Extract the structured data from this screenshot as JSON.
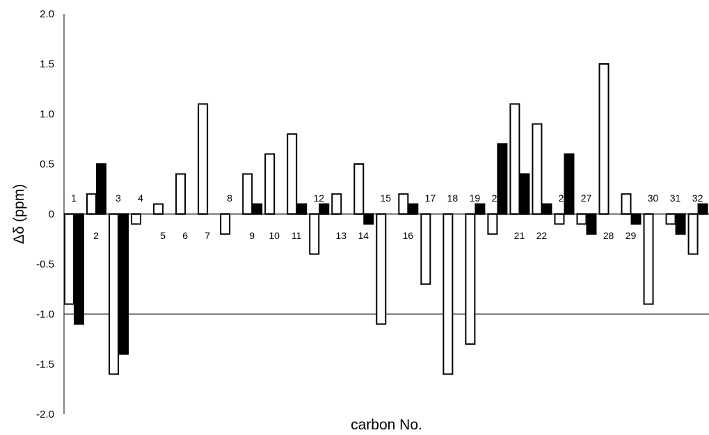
{
  "chart_data": {
    "type": "bar",
    "xlabel": "carbon No.",
    "ylabel": "Δδ (ppm)",
    "ylim": [
      -2.0,
      2.0
    ],
    "yticks": [
      "2.0",
      "1.5",
      "1.0",
      "0.5",
      "0",
      "-0.5",
      "-1.0",
      "-1.5",
      "-2.0"
    ],
    "gridlines": [
      0,
      -1.0
    ],
    "series": [
      {
        "color": "#ffffff",
        "stroke": "#000000"
      },
      {
        "color": "#000000",
        "stroke": "#000000"
      }
    ],
    "categories": [
      {
        "label": "1",
        "values": [
          -0.9,
          -1.1
        ]
      },
      {
        "label": "2",
        "values": [
          0.2,
          0.5
        ]
      },
      {
        "label": "3",
        "values": [
          -1.6,
          -1.4
        ]
      },
      {
        "label": "4",
        "values": [
          -0.1,
          null
        ]
      },
      {
        "label": "5",
        "values": [
          0.1,
          null
        ]
      },
      {
        "label": "6",
        "values": [
          0.4,
          null
        ]
      },
      {
        "label": "7",
        "values": [
          1.1,
          null
        ]
      },
      {
        "label": "8",
        "values": [
          -0.2,
          null
        ]
      },
      {
        "label": "9",
        "values": [
          0.4,
          0.1
        ]
      },
      {
        "label": "10",
        "values": [
          0.6,
          null
        ]
      },
      {
        "label": "11",
        "values": [
          0.8,
          0.1
        ]
      },
      {
        "label": "12",
        "values": [
          -0.4,
          0.1
        ]
      },
      {
        "label": "13",
        "values": [
          0.2,
          null
        ]
      },
      {
        "label": "14",
        "values": [
          0.5,
          -0.1
        ]
      },
      {
        "label": "15",
        "values": [
          -1.1,
          null
        ]
      },
      {
        "label": "16",
        "values": [
          0.2,
          0.1
        ]
      },
      {
        "label": "17",
        "values": [
          -0.7,
          null
        ]
      },
      {
        "label": "18",
        "values": [
          -1.6,
          null
        ]
      },
      {
        "label": "19",
        "values": [
          -1.3,
          0.1
        ]
      },
      {
        "label": "20",
        "values": [
          -0.2,
          0.7
        ]
      },
      {
        "label": "21",
        "values": [
          1.1,
          0.4
        ]
      },
      {
        "label": "22",
        "values": [
          0.9,
          0.1
        ]
      },
      {
        "label": "23",
        "values": [
          -0.1,
          0.6
        ]
      },
      {
        "label": "27",
        "values": [
          -0.1,
          -0.2
        ]
      },
      {
        "label": "28",
        "values": [
          1.5,
          null
        ]
      },
      {
        "label": "29",
        "values": [
          0.2,
          -0.1
        ]
      },
      {
        "label": "30",
        "values": [
          -0.9,
          null
        ]
      },
      {
        "label": "31",
        "values": [
          -0.1,
          -0.2
        ]
      },
      {
        "label": "32",
        "values": [
          -0.4,
          0.1
        ]
      }
    ]
  }
}
